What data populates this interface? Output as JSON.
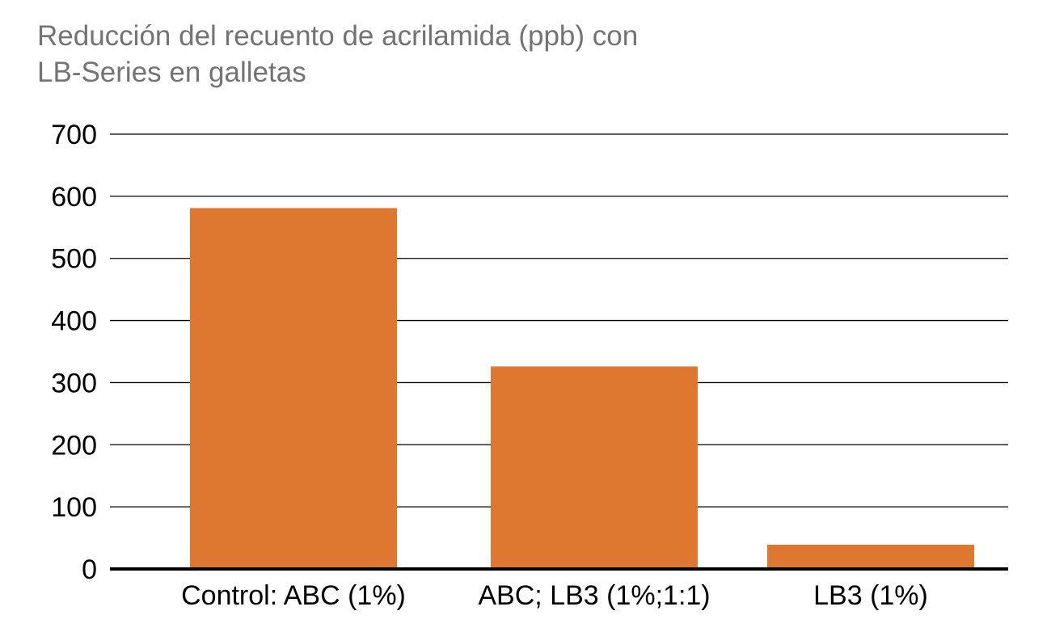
{
  "chart_data": {
    "type": "bar",
    "title_lines": [
      "Reducción del recuento de acrilamida (ppb) con",
      "LB-Series en galletas"
    ],
    "categories": [
      "Control: ABC (1%)",
      "ABC; LB3 (1%;1:1)",
      "LB3 (1%)"
    ],
    "values": [
      581,
      326,
      39
    ],
    "ylim": [
      0,
      700
    ],
    "yticks": [
      0,
      100,
      200,
      300,
      400,
      500,
      600,
      700
    ],
    "grid": true,
    "legend": "none",
    "bar_color": "#DE7730",
    "grid_color": "#000000",
    "title_color": "#737373"
  }
}
